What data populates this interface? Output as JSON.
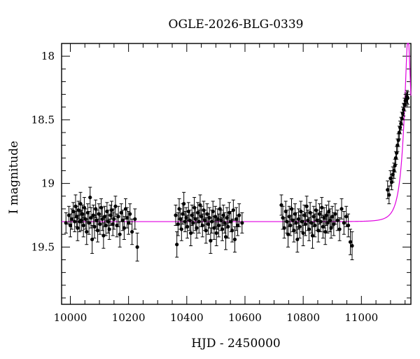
{
  "chart_data": {
    "type": "scatter",
    "title": "OGLE-2026-BLG-0339",
    "xlabel": "HJD - 2450000",
    "ylabel": "I magnitude",
    "xlim": [
      9970,
      11170
    ],
    "ylim": [
      19.95,
      17.9
    ],
    "y_inverted": true,
    "x_ticks": [
      10000,
      10200,
      10400,
      10600,
      10800,
      11000
    ],
    "y_ticks": [
      18,
      18.5,
      19,
      19.5
    ],
    "grid": false,
    "colors": {
      "points": "#000000",
      "model": "#e000e0",
      "axes": "#000000"
    },
    "model": {
      "type": "microlensing",
      "baseline": 19.3,
      "t0": 11160,
      "tE": 30,
      "u0": 0.27
    },
    "series": [
      {
        "label": "data",
        "points": [
          [
            9985,
            19.31,
            0.08
          ],
          [
            9995,
            19.25,
            0.07
          ],
          [
            10000,
            19.33,
            0.09
          ],
          [
            10005,
            19.28,
            0.08
          ],
          [
            10010,
            19.22,
            0.07
          ],
          [
            10015,
            19.3,
            0.08
          ],
          [
            10018,
            19.18,
            0.09
          ],
          [
            10022,
            19.26,
            0.08
          ],
          [
            10025,
            19.35,
            0.1
          ],
          [
            10028,
            19.21,
            0.07
          ],
          [
            10032,
            19.3,
            0.08
          ],
          [
            10035,
            19.16,
            0.09
          ],
          [
            10038,
            19.29,
            0.08
          ],
          [
            10041,
            19.24,
            0.07
          ],
          [
            10045,
            19.33,
            0.09
          ],
          [
            10048,
            19.19,
            0.08
          ],
          [
            10052,
            19.28,
            0.08
          ],
          [
            10056,
            19.38,
            0.1
          ],
          [
            10060,
            19.23,
            0.07
          ],
          [
            10064,
            19.31,
            0.09
          ],
          [
            10068,
            19.11,
            0.08
          ],
          [
            10071,
            19.27,
            0.08
          ],
          [
            10075,
            19.44,
            0.11
          ],
          [
            10079,
            19.25,
            0.08
          ],
          [
            10083,
            19.34,
            0.09
          ],
          [
            10087,
            19.2,
            0.07
          ],
          [
            10090,
            19.29,
            0.08
          ],
          [
            10094,
            19.37,
            0.09
          ],
          [
            10098,
            19.24,
            0.08
          ],
          [
            10102,
            19.32,
            0.08
          ],
          [
            10106,
            19.19,
            0.07
          ],
          [
            10110,
            19.28,
            0.09
          ],
          [
            10114,
            19.41,
            0.1
          ],
          [
            10118,
            19.26,
            0.08
          ],
          [
            10122,
            19.33,
            0.08
          ],
          [
            10126,
            19.22,
            0.07
          ],
          [
            10130,
            19.3,
            0.09
          ],
          [
            10134,
            19.36,
            0.08
          ],
          [
            10138,
            19.25,
            0.08
          ],
          [
            10142,
            19.21,
            0.07
          ],
          [
            10146,
            19.32,
            0.09
          ],
          [
            10150,
            19.28,
            0.08
          ],
          [
            10155,
            19.18,
            0.08
          ],
          [
            10160,
            19.33,
            0.09
          ],
          [
            10165,
            19.26,
            0.08
          ],
          [
            10170,
            19.4,
            0.1
          ],
          [
            10175,
            19.23,
            0.07
          ],
          [
            10180,
            19.29,
            0.08
          ],
          [
            10185,
            19.35,
            0.09
          ],
          [
            10190,
            19.2,
            0.08
          ],
          [
            10195,
            19.27,
            0.08
          ],
          [
            10200,
            19.31,
            0.09
          ],
          [
            10205,
            19.24,
            0.08
          ],
          [
            10212,
            19.38,
            0.1
          ],
          [
            10222,
            19.28,
            0.08
          ],
          [
            10230,
            19.5,
            0.11
          ],
          [
            10362,
            19.25,
            0.08
          ],
          [
            10366,
            19.48,
            0.1
          ],
          [
            10370,
            19.32,
            0.09
          ],
          [
            10374,
            19.2,
            0.08
          ],
          [
            10378,
            19.28,
            0.08
          ],
          [
            10382,
            19.36,
            0.09
          ],
          [
            10386,
            19.24,
            0.08
          ],
          [
            10390,
            19.16,
            0.09
          ],
          [
            10394,
            19.3,
            0.08
          ],
          [
            10398,
            19.27,
            0.08
          ],
          [
            10402,
            19.34,
            0.09
          ],
          [
            10406,
            19.22,
            0.07
          ],
          [
            10410,
            19.29,
            0.08
          ],
          [
            10414,
            19.39,
            0.1
          ],
          [
            10418,
            19.25,
            0.08
          ],
          [
            10422,
            19.31,
            0.08
          ],
          [
            10426,
            19.19,
            0.08
          ],
          [
            10430,
            19.28,
            0.09
          ],
          [
            10434,
            19.35,
            0.08
          ],
          [
            10438,
            19.23,
            0.08
          ],
          [
            10442,
            19.3,
            0.09
          ],
          [
            10446,
            19.17,
            0.08
          ],
          [
            10450,
            19.26,
            0.08
          ],
          [
            10454,
            19.33,
            0.09
          ],
          [
            10458,
            19.21,
            0.07
          ],
          [
            10462,
            19.29,
            0.08
          ],
          [
            10466,
            19.37,
            0.1
          ],
          [
            10470,
            19.24,
            0.08
          ],
          [
            10474,
            19.32,
            0.08
          ],
          [
            10478,
            19.27,
            0.08
          ],
          [
            10482,
            19.45,
            0.1
          ],
          [
            10486,
            19.3,
            0.09
          ],
          [
            10490,
            19.22,
            0.08
          ],
          [
            10494,
            19.35,
            0.09
          ],
          [
            10498,
            19.26,
            0.08
          ],
          [
            10502,
            19.39,
            0.1
          ],
          [
            10506,
            19.28,
            0.08
          ],
          [
            10510,
            19.33,
            0.09
          ],
          [
            10514,
            19.2,
            0.08
          ],
          [
            10518,
            19.29,
            0.08
          ],
          [
            10522,
            19.36,
            0.09
          ],
          [
            10526,
            19.25,
            0.08
          ],
          [
            10530,
            19.31,
            0.08
          ],
          [
            10534,
            19.42,
            0.1
          ],
          [
            10538,
            19.27,
            0.08
          ],
          [
            10542,
            19.34,
            0.09
          ],
          [
            10546,
            19.23,
            0.08
          ],
          [
            10552,
            19.3,
            0.08
          ],
          [
            10556,
            19.37,
            0.09
          ],
          [
            10560,
            19.21,
            0.08
          ],
          [
            10565,
            19.44,
            0.1
          ],
          [
            10570,
            19.28,
            0.09
          ],
          [
            10575,
            19.33,
            0.08
          ],
          [
            10580,
            19.25,
            0.09
          ],
          [
            10590,
            19.31,
            0.08
          ],
          [
            10725,
            19.17,
            0.08
          ],
          [
            10730,
            19.27,
            0.09
          ],
          [
            10735,
            19.35,
            0.08
          ],
          [
            10740,
            19.22,
            0.08
          ],
          [
            10744,
            19.3,
            0.09
          ],
          [
            10748,
            19.4,
            0.1
          ],
          [
            10752,
            19.26,
            0.08
          ],
          [
            10756,
            19.33,
            0.08
          ],
          [
            10760,
            19.2,
            0.08
          ],
          [
            10764,
            19.29,
            0.09
          ],
          [
            10768,
            19.37,
            0.09
          ],
          [
            10772,
            19.24,
            0.08
          ],
          [
            10776,
            19.31,
            0.08
          ],
          [
            10780,
            19.44,
            0.1
          ],
          [
            10784,
            19.28,
            0.08
          ],
          [
            10788,
            19.34,
            0.09
          ],
          [
            10792,
            19.22,
            0.08
          ],
          [
            10796,
            19.3,
            0.08
          ],
          [
            10800,
            19.39,
            0.1
          ],
          [
            10804,
            19.25,
            0.08
          ],
          [
            10808,
            19.32,
            0.09
          ],
          [
            10812,
            19.18,
            0.08
          ],
          [
            10816,
            19.29,
            0.08
          ],
          [
            10820,
            19.36,
            0.09
          ],
          [
            10824,
            19.23,
            0.08
          ],
          [
            10828,
            19.31,
            0.08
          ],
          [
            10832,
            19.41,
            0.1
          ],
          [
            10836,
            19.26,
            0.08
          ],
          [
            10840,
            19.33,
            0.09
          ],
          [
            10844,
            19.21,
            0.08
          ],
          [
            10848,
            19.29,
            0.08
          ],
          [
            10852,
            19.37,
            0.09
          ],
          [
            10856,
            19.24,
            0.08
          ],
          [
            10860,
            19.3,
            0.08
          ],
          [
            10864,
            19.19,
            0.08
          ],
          [
            10868,
            19.34,
            0.09
          ],
          [
            10872,
            19.27,
            0.08
          ],
          [
            10876,
            19.38,
            0.1
          ],
          [
            10880,
            19.25,
            0.08
          ],
          [
            10884,
            19.31,
            0.08
          ],
          [
            10888,
            19.22,
            0.08
          ],
          [
            10892,
            19.29,
            0.09
          ],
          [
            10896,
            19.35,
            0.08
          ],
          [
            10900,
            19.26,
            0.08
          ],
          [
            10905,
            19.32,
            0.09
          ],
          [
            10910,
            19.24,
            0.08
          ],
          [
            10918,
            19.29,
            0.08
          ],
          [
            10925,
            19.36,
            0.09
          ],
          [
            10932,
            19.2,
            0.08
          ],
          [
            10940,
            19.31,
            0.09
          ],
          [
            10948,
            19.26,
            0.08
          ],
          [
            10955,
            19.33,
            0.09
          ],
          [
            10962,
            19.46,
            0.1
          ],
          [
            10968,
            19.49,
            0.11
          ],
          [
            11090,
            19.05,
            0.07
          ],
          [
            11095,
            19.09,
            0.07
          ],
          [
            11100,
            18.96,
            0.06
          ],
          [
            11104,
            18.99,
            0.06
          ],
          [
            11108,
            18.93,
            0.06
          ],
          [
            11112,
            18.9,
            0.06
          ],
          [
            11115,
            18.86,
            0.05
          ],
          [
            11118,
            18.8,
            0.05
          ],
          [
            11121,
            18.76,
            0.05
          ],
          [
            11124,
            18.7,
            0.05
          ],
          [
            11127,
            18.66,
            0.05
          ],
          [
            11130,
            18.6,
            0.05
          ],
          [
            11133,
            18.56,
            0.05
          ],
          [
            11136,
            18.53,
            0.05
          ],
          [
            11139,
            18.49,
            0.05
          ],
          [
            11142,
            18.45,
            0.05
          ],
          [
            11145,
            18.42,
            0.05
          ],
          [
            11148,
            18.38,
            0.05
          ],
          [
            11151,
            18.35,
            0.05
          ],
          [
            11154,
            18.34,
            0.05
          ],
          [
            11157,
            18.32,
            0.05
          ],
          [
            11159,
            18.33,
            0.05
          ]
        ]
      }
    ]
  }
}
